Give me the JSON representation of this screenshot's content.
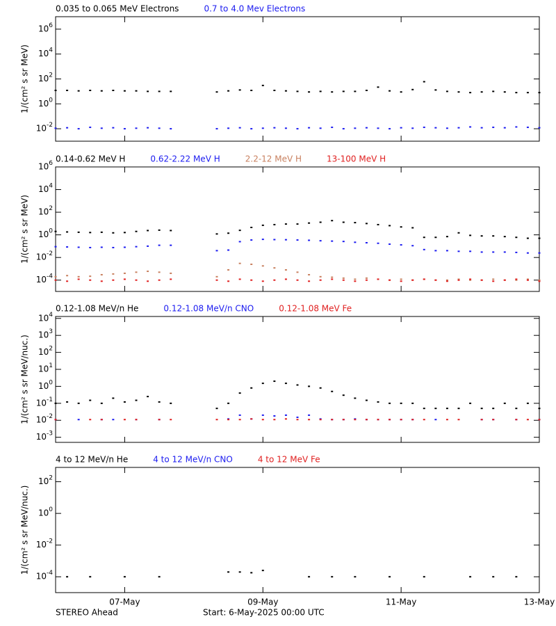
{
  "chart_data": [
    {
      "type": "scatter",
      "y_label": "1/(cm² s sr MeV)",
      "log_y": true,
      "xlim": [
        0,
        168
      ],
      "xticks": [
        24,
        72,
        120,
        168
      ],
      "ylim": [
        0.001,
        10000000
      ],
      "yticks": [
        {
          "value": 0.01,
          "label": "10^-2"
        },
        {
          "value": 1,
          "label": "10^0"
        },
        {
          "value": 100,
          "label": "10^2"
        },
        {
          "value": 10000,
          "label": "10^4"
        },
        {
          "value": 1000000,
          "label": "10^6"
        }
      ],
      "x": [
        0,
        4,
        8,
        12,
        16,
        20,
        24,
        28,
        32,
        36,
        40,
        44,
        48,
        52,
        56,
        60,
        64,
        68,
        72,
        76,
        80,
        84,
        88,
        92,
        96,
        100,
        104,
        108,
        112,
        116,
        120,
        124,
        128,
        132,
        136,
        140,
        144,
        148,
        152,
        156,
        160,
        164,
        168
      ],
      "series": [
        {
          "name": "0.035 to 0.065 MeV Electrons",
          "color": "#000000",
          "values": [
            12,
            12,
            11,
            12,
            11,
            12,
            11,
            11,
            10,
            10,
            10,
            null,
            null,
            null,
            9,
            11,
            13,
            12,
            30,
            12,
            11,
            10,
            9,
            10,
            9,
            10,
            10,
            12,
            22,
            11,
            9,
            14,
            60,
            13,
            10,
            9,
            8,
            9,
            10,
            9,
            8,
            8,
            8
          ]
        },
        {
          "name": "0.7 to 4.0 Mev Electrons",
          "color": "#1c1cf0",
          "values": [
            0.011,
            0.012,
            0.01,
            0.013,
            0.011,
            0.012,
            0.01,
            0.011,
            0.012,
            0.011,
            0.01,
            null,
            null,
            null,
            0.01,
            0.011,
            0.012,
            0.01,
            0.011,
            0.012,
            0.011,
            0.01,
            0.012,
            0.011,
            0.013,
            0.01,
            0.011,
            0.012,
            0.011,
            0.01,
            0.012,
            0.011,
            0.013,
            0.012,
            0.011,
            0.012,
            0.014,
            0.012,
            0.013,
            0.012,
            0.014,
            0.013,
            0.012
          ]
        }
      ]
    },
    {
      "type": "scatter",
      "y_label": "1/(cm² s sr MeV)",
      "log_y": true,
      "xlim": [
        0,
        168
      ],
      "xticks": [
        24,
        72,
        120,
        168
      ],
      "ylim": [
        1e-05,
        1000000
      ],
      "yticks": [
        {
          "value": 0.0001,
          "label": "10^-4"
        },
        {
          "value": 0.01,
          "label": "10^-2"
        },
        {
          "value": 1,
          "label": "10^0"
        },
        {
          "value": 100,
          "label": "10^2"
        },
        {
          "value": 10000,
          "label": "10^4"
        },
        {
          "value": 1000000,
          "label": "10^6"
        }
      ],
      "x": [
        0,
        4,
        8,
        12,
        16,
        20,
        24,
        28,
        32,
        36,
        40,
        44,
        48,
        52,
        56,
        60,
        64,
        68,
        72,
        76,
        80,
        84,
        88,
        92,
        96,
        100,
        104,
        108,
        112,
        116,
        120,
        124,
        128,
        132,
        136,
        140,
        144,
        148,
        152,
        156,
        160,
        164,
        168
      ],
      "series": [
        {
          "name": "0.14-0.62 MeV H",
          "color": "#000000",
          "values": [
            2,
            1.8,
            1.7,
            1.6,
            1.7,
            1.5,
            1.6,
            2,
            2.4,
            2.6,
            2.4,
            null,
            null,
            null,
            1.2,
            1.4,
            2.5,
            4.5,
            7,
            8,
            9,
            9,
            11,
            13,
            18,
            13,
            12,
            10,
            8,
            6.5,
            5,
            4.2,
            0.6,
            0.6,
            0.7,
            1.5,
            0.9,
            0.8,
            0.8,
            0.7,
            0.6,
            0.5,
            0.5
          ]
        },
        {
          "name": "0.62-2.22 MeV H",
          "color": "#1c1cf0",
          "values": [
            0.09,
            0.085,
            0.08,
            0.075,
            0.08,
            0.075,
            0.08,
            0.09,
            0.1,
            0.12,
            0.12,
            null,
            null,
            null,
            0.04,
            0.045,
            0.25,
            0.35,
            0.4,
            0.38,
            0.37,
            0.35,
            0.33,
            0.3,
            0.28,
            0.26,
            0.22,
            0.2,
            0.18,
            0.15,
            0.13,
            0.11,
            0.05,
            0.04,
            0.04,
            0.035,
            0.035,
            0.03,
            0.03,
            0.03,
            0.028,
            0.025,
            0.025
          ]
        },
        {
          "name": "2.2-12 MeV H",
          "color": "#c8805f",
          "values": [
            0.0002,
            0.00025,
            0.0002,
            0.00022,
            0.0003,
            0.00035,
            0.0004,
            0.0005,
            0.0006,
            0.0005,
            0.0004,
            null,
            null,
            null,
            0.0002,
            0.0008,
            0.003,
            0.0025,
            0.0018,
            0.0012,
            0.0008,
            0.0005,
            0.0003,
            0.0002,
            0.00018,
            0.00015,
            0.00012,
            0.00015,
            0.00012,
            0.0001,
            0.00012,
            0.0001,
            0.00012,
            0.0001,
            0.0001,
            0.00012,
            0.0001,
            0.0001,
            0.00012,
            0.0001,
            0.0001,
            0.00012,
            0.0001
          ]
        },
        {
          "name": "13-100 MeV H",
          "color": "#e02020",
          "values": [
            0.0001,
            8e-05,
            0.00012,
            0.0001,
            8e-05,
            0.0001,
            0.00012,
            0.0001,
            8e-05,
            0.0001,
            0.00012,
            null,
            null,
            null,
            0.0001,
            8e-05,
            0.00012,
            0.0001,
            8e-05,
            0.0001,
            0.00012,
            0.0001,
            8e-05,
            0.0001,
            0.00012,
            0.0001,
            8e-05,
            0.0001,
            0.00012,
            0.0001,
            8e-05,
            0.0001,
            0.00012,
            0.0001,
            8e-05,
            0.0001,
            0.00012,
            0.0001,
            8e-05,
            0.0001,
            0.00012,
            0.0001,
            8e-05
          ]
        }
      ]
    },
    {
      "type": "scatter",
      "y_label": "1/(cm² s sr MeV/nuc.)",
      "log_y": true,
      "xlim": [
        0,
        168
      ],
      "xticks": [
        24,
        72,
        120,
        168
      ],
      "ylim": [
        0.0005,
        13000
      ],
      "yticks": [
        {
          "value": 0.001,
          "label": "10^-3"
        },
        {
          "value": 0.01,
          "label": "10^-2"
        },
        {
          "value": 0.1,
          "label": "10^-1"
        },
        {
          "value": 1,
          "label": "10^0"
        },
        {
          "value": 10,
          "label": "10^1"
        },
        {
          "value": 100,
          "label": "10^2"
        },
        {
          "value": 1000,
          "label": "10^3"
        },
        {
          "value": 10000,
          "label": "10^4"
        }
      ],
      "x": [
        0,
        4,
        8,
        12,
        16,
        20,
        24,
        28,
        32,
        36,
        40,
        44,
        48,
        52,
        56,
        60,
        64,
        68,
        72,
        76,
        80,
        84,
        88,
        92,
        96,
        100,
        104,
        108,
        112,
        116,
        120,
        124,
        128,
        132,
        136,
        140,
        144,
        148,
        152,
        156,
        160,
        164,
        168
      ],
      "series": [
        {
          "name": "0.12-1.08 MeV/n He",
          "color": "#000000",
          "values": [
            0.1,
            0.12,
            0.1,
            0.15,
            0.1,
            0.2,
            0.12,
            0.15,
            0.25,
            0.12,
            0.1,
            null,
            null,
            null,
            0.05,
            0.1,
            0.4,
            0.8,
            1.5,
            2,
            1.5,
            1.2,
            1,
            0.8,
            0.5,
            0.3,
            0.2,
            0.15,
            0.12,
            0.1,
            0.1,
            0.1,
            0.05,
            0.05,
            0.05,
            0.05,
            0.1,
            0.05,
            0.05,
            0.1,
            0.05,
            0.1,
            0.05
          ]
        },
        {
          "name": "0.12-1.08 MeV/n CNO",
          "color": "#1c1cf0",
          "values": [
            0.011,
            null,
            0.011,
            null,
            0.011,
            0.011,
            null,
            0.011,
            null,
            0.011,
            null,
            null,
            null,
            null,
            null,
            0.012,
            0.02,
            0.012,
            0.02,
            0.018,
            0.02,
            0.015,
            0.02,
            0.012,
            0.011,
            0.011,
            0.012,
            0.011,
            0.011,
            0.011,
            0.011,
            0.011,
            null,
            0.011,
            null,
            null,
            null,
            0.011,
            0.011,
            null,
            0.011,
            null,
            0.011
          ]
        },
        {
          "name": "0.12-1.08 MeV Fe",
          "color": "#e02020",
          "values": [
            0.011,
            null,
            null,
            0.011,
            0.011,
            null,
            0.011,
            0.011,
            null,
            0.011,
            0.011,
            null,
            null,
            null,
            0.011,
            0.011,
            0.011,
            0.012,
            0.011,
            0.011,
            0.012,
            0.011,
            0.011,
            0.011,
            0.011,
            0.011,
            0.011,
            0.011,
            0.011,
            0.011,
            0.011,
            0.011,
            0.011,
            null,
            0.011,
            0.011,
            null,
            0.011,
            0.011,
            null,
            0.011,
            0.011,
            0.011
          ]
        }
      ]
    },
    {
      "type": "scatter",
      "y_label": "1/(cm² s sr MeV/nuc.)",
      "log_y": true,
      "xlim": [
        0,
        168
      ],
      "xticks": [
        {
          "value": 24,
          "label": "07-May"
        },
        {
          "value": 72,
          "label": "09-May"
        },
        {
          "value": 120,
          "label": "11-May"
        },
        {
          "value": 168,
          "label": "13-May"
        }
      ],
      "ylim": [
        1e-05,
        800
      ],
      "yticks": [
        {
          "value": 0.0001,
          "label": "10^-4"
        },
        {
          "value": 0.01,
          "label": "10^-2"
        },
        {
          "value": 1,
          "label": "10^0"
        },
        {
          "value": 100,
          "label": "10^2"
        }
      ],
      "x": [
        0,
        4,
        8,
        12,
        16,
        20,
        24,
        28,
        32,
        36,
        40,
        44,
        48,
        52,
        56,
        60,
        64,
        68,
        72,
        76,
        80,
        84,
        88,
        92,
        96,
        100,
        104,
        108,
        112,
        116,
        120,
        124,
        128,
        132,
        136,
        140,
        144,
        148,
        152,
        156,
        160,
        164,
        168
      ],
      "series": [
        {
          "name": "4 to 12 MeV/n He",
          "color": "#000000",
          "values": [
            null,
            0.0001,
            null,
            0.0001,
            null,
            null,
            0.0001,
            null,
            null,
            0.0001,
            null,
            null,
            null,
            null,
            null,
            0.0002,
            0.0002,
            0.00018,
            0.00025,
            null,
            null,
            null,
            0.0001,
            null,
            0.0001,
            null,
            0.0001,
            null,
            null,
            0.0001,
            null,
            null,
            0.0001,
            null,
            null,
            null,
            0.0001,
            null,
            0.0001,
            null,
            0.0001,
            null,
            null
          ]
        },
        {
          "name": "4 to 12 MeV/n CNO",
          "color": "#1c1cf0",
          "values": [
            null,
            null,
            null,
            null,
            null,
            null,
            null,
            null,
            null,
            null,
            null,
            null,
            null,
            null,
            null,
            null,
            null,
            null,
            null,
            null,
            null,
            null,
            null,
            null,
            null,
            null,
            null,
            null,
            null,
            null,
            null,
            null,
            null,
            null,
            null,
            null,
            null,
            null,
            null,
            null,
            null,
            null,
            null
          ]
        },
        {
          "name": "4 to 12 MeV Fe",
          "color": "#e02020",
          "values": [
            null,
            null,
            null,
            null,
            null,
            null,
            null,
            null,
            null,
            null,
            null,
            null,
            null,
            null,
            null,
            null,
            null,
            null,
            null,
            null,
            null,
            null,
            null,
            null,
            null,
            null,
            null,
            null,
            null,
            null,
            null,
            null,
            null,
            null,
            null,
            null,
            null,
            null,
            null,
            null,
            null,
            null,
            null
          ]
        }
      ]
    }
  ],
  "footer": {
    "spacecraft": "STEREO Ahead",
    "start": "Start:  6-May-2025 00:00 UTC"
  }
}
